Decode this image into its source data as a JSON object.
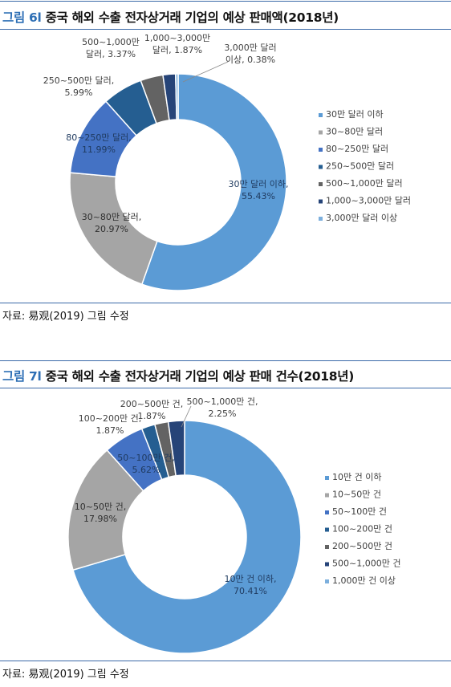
{
  "figures": [
    {
      "prefix": "그림",
      "number": "6",
      "sep": "l",
      "title": "중국 해외 수출 전자상거래 기업의 예상 판매액(2018년)",
      "source": "자료: 易观(2019) 그림 수정"
    },
    {
      "prefix": "그림",
      "number": "7",
      "sep": "l",
      "title": "중국 해외 수출 전자상거래 기업의 예상 판매 건수(2018년)",
      "source": "자료: 易观(2019) 그림 수정"
    }
  ],
  "chart_data": [
    {
      "type": "pie",
      "variant": "donut",
      "title": "중국 해외 수출 전자상거래 기업의 예상 판매액(2018년)",
      "categories": [
        "30만 달러 이하",
        "30~80만 달러",
        "80~250만 달러",
        "250~500만 달러",
        "500~1,000만 달러",
        "1,000~3,000만 달러",
        "3,000만 달러 이상"
      ],
      "values": [
        55.43,
        20.97,
        11.99,
        5.99,
        3.37,
        1.87,
        0.38
      ],
      "labels": [
        [
          "30만 달러 이하,",
          "55.43%"
        ],
        [
          "30~80만 달러,",
          "20.97%"
        ],
        [
          "80~250만 달러,",
          "11.99%"
        ],
        [
          "250~500만 달러,",
          "5.99%"
        ],
        [
          "500~1,000만",
          "달러, 3.37%"
        ],
        [
          "1,000~3,000만",
          "달러, 1.87%"
        ],
        [
          "3,000만 달러",
          "이상, 0.38%"
        ]
      ],
      "colors": [
        "#5b9bd5",
        "#a5a5a5",
        "#4472c4",
        "#255e91",
        "#636363",
        "#264478",
        "#7cafdd"
      ],
      "legend_position": "right"
    },
    {
      "type": "pie",
      "variant": "donut",
      "title": "중국 해외 수출 전자상거래 기업의 예상 판매 건수(2018년)",
      "categories": [
        "10만 건 이하",
        "10~50만 건",
        "50~100만 건",
        "100~200만 건",
        "200~500만 건",
        "500~1,000만 건",
        "1,000만 건 이상"
      ],
      "values": [
        70.41,
        17.98,
        5.62,
        1.87,
        1.87,
        2.25,
        0
      ],
      "labels": [
        [
          "10만 건 이하,",
          "70.41%"
        ],
        [
          "10~50만 건,",
          "17.98%"
        ],
        [
          "50~100만 건,",
          "5.62%"
        ],
        [
          "100~200만 건,",
          "1.87%"
        ],
        [
          "200~500만 건,",
          "1.87%"
        ],
        [
          "500~1,000만 건,",
          "2.25%"
        ],
        []
      ],
      "colors": [
        "#5b9bd5",
        "#a5a5a5",
        "#4472c4",
        "#255e91",
        "#636363",
        "#264478",
        "#7cafdd"
      ],
      "legend_position": "right"
    }
  ]
}
